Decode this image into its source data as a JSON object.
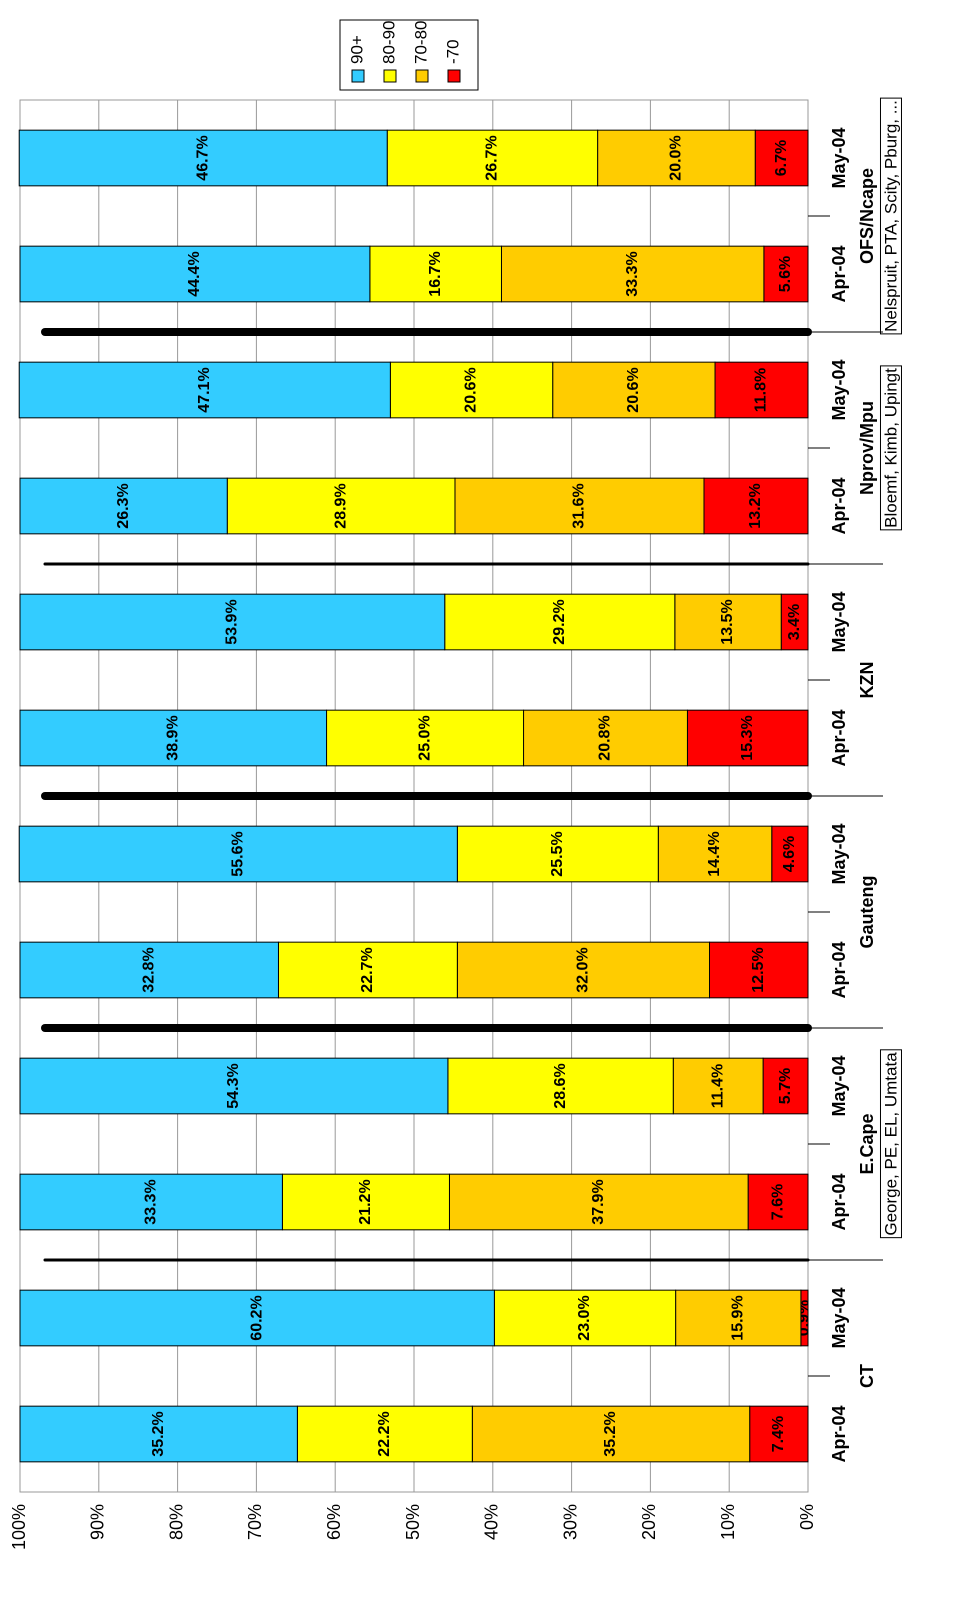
{
  "chart_data": {
    "type": "stacked-bar",
    "groups": [
      {
        "label": "CT",
        "categories": [
          "Apr-04",
          "May-04"
        ]
      },
      {
        "label": "E.Cape",
        "note": "George, PE, EL, Umtata",
        "categories": [
          "Apr-04",
          "May-04"
        ]
      },
      {
        "label": "Gauteng",
        "categories": [
          "Apr-04",
          "May-04"
        ]
      },
      {
        "label": "KZN",
        "categories": [
          "Apr-04",
          "May-04"
        ]
      },
      {
        "label": "Nprov/Mpu",
        "note": "Bloemf, Kimb, Upingt",
        "categories": [
          "Apr-04",
          "May-04"
        ]
      },
      {
        "label": "OFS/Ncape",
        "note": "Nelspruit, PTA, Scity, Pburg, ...",
        "categories": [
          "Apr-04",
          "May-04"
        ]
      }
    ],
    "series": [
      {
        "name": "90+",
        "color": "#33ccff",
        "values": [
          35.2,
          60.2,
          33.3,
          54.3,
          32.8,
          55.6,
          38.9,
          53.9,
          26.3,
          47.1,
          44.4,
          46.7
        ],
        "value_labels": [
          "35.2%",
          "60.2%",
          "33.3%",
          "54.3%",
          "32.8%",
          "55.6%",
          "38.9%",
          "53.9%",
          "26.3%",
          "47.1%",
          "44.4%",
          "46.7%"
        ]
      },
      {
        "name": "80-90",
        "color": "#ffff00",
        "values": [
          22.2,
          23.0,
          21.2,
          28.6,
          22.7,
          25.5,
          25.0,
          29.2,
          28.9,
          20.6,
          16.7,
          26.7
        ],
        "value_labels": [
          "22.2%",
          "23.0%",
          "21.2%",
          "28.6%",
          "22.7%",
          "25.5%",
          "25.0%",
          "29.2%",
          "28.9%",
          "20.6%",
          "16.7%",
          "26.7%"
        ]
      },
      {
        "name": "70-80",
        "color": "#ffcc00",
        "values": [
          35.2,
          15.9,
          37.9,
          11.4,
          32.0,
          14.4,
          20.8,
          13.5,
          31.6,
          20.6,
          33.3,
          20.0
        ],
        "value_labels": [
          "35.2%",
          "15.9%",
          "37.9%",
          "11.4%",
          "32.0%",
          "14.4%",
          "20.8%",
          "13.5%",
          "31.6%",
          "20.6%",
          "33.3%",
          "20.0%"
        ]
      },
      {
        "name": "-70",
        "color": "#ff0000",
        "values": [
          7.4,
          0.9,
          7.6,
          5.7,
          12.5,
          4.6,
          15.3,
          3.4,
          13.2,
          11.8,
          5.6,
          6.7
        ],
        "value_labels": [
          "7.4%",
          "0.9%",
          "7.6%",
          "5.7%",
          "12.5%",
          "4.6%",
          "15.3%",
          "3.4%",
          "13.2%",
          "11.8%",
          "5.6%",
          "6.7%"
        ]
      }
    ],
    "ylim": [
      0,
      100
    ],
    "yticks": [
      {
        "value": 0,
        "label": "0%"
      },
      {
        "value": 10,
        "label": "10%"
      },
      {
        "value": 20,
        "label": "20%"
      },
      {
        "value": 30,
        "label": "30%"
      },
      {
        "value": 40,
        "label": "40%"
      },
      {
        "value": 50,
        "label": "50%"
      },
      {
        "value": 60,
        "label": "60%"
      },
      {
        "value": 70,
        "label": "70%"
      },
      {
        "value": 80,
        "label": "80%"
      },
      {
        "value": 90,
        "label": "90%"
      },
      {
        "value": 100,
        "label": "100%"
      }
    ],
    "grid": true
  }
}
